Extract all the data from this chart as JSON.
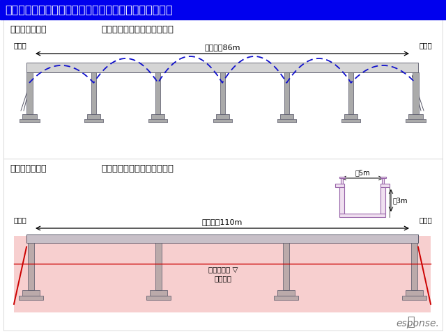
{
  "title": "芸備線白木山・狩留家間　第１三篠川橋りょう復旧計画",
  "title_bg": "#0000ee",
  "title_color": "#ffffff",
  "title_fontsize": 11.5,
  "old_bridge_label": "【旧橋りょう】",
  "old_bridge_type": "６径間上路プレートガーダー",
  "new_bridge_label": "【新橋りょう】",
  "new_bridge_type": "３径間下路プレートガーダー",
  "old_length_label": "橋長：約86m",
  "new_length_label": "橋長：約110m",
  "sanjikata": "三次方",
  "hiroshimakata": "広島方",
  "keikaku_kosui": "計画高水位 ▽",
  "keikaku_kawadoko": "計画河床",
  "width_label": "約5m",
  "height_label": "約3m",
  "bg_color": "#ffffff",
  "dashed_blue": "#1010cc",
  "red_line_color": "#cc0000",
  "cross_section_color": "#9966aa",
  "pink_fill": "#f5c0c0",
  "bridge_gray": "#b0b0b8",
  "bridge_edge": "#555566",
  "pier_gray": "#aaaaaa",
  "response_color": "#777777"
}
